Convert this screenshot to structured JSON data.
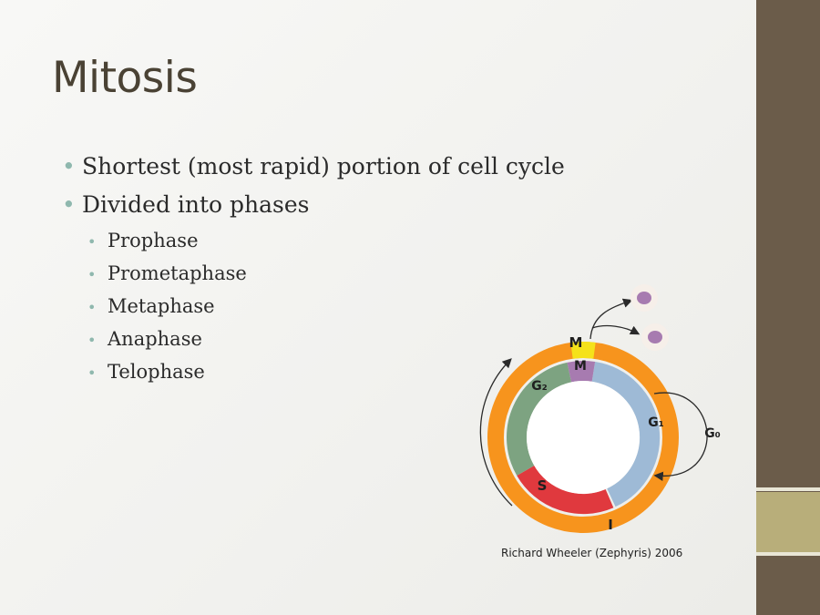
{
  "slide": {
    "title": "Mitosis",
    "bullets": [
      "Shortest (most rapid) portion of cell cycle",
      "Divided into phases"
    ],
    "sub_bullets": [
      "Prophase",
      "Prometaphase",
      "Metaphase",
      "Anaphase",
      "Telophase"
    ]
  },
  "diagram": {
    "labels": {
      "outer_m": "M",
      "inner_m": "M",
      "g2": "G₂",
      "g1": "G₁",
      "g0": "G₀",
      "s": "S",
      "i": "I"
    },
    "credit": "Richard Wheeler (Zephyris) 2006"
  },
  "colors": {
    "outer_ring": "#f7941d",
    "m_phase": "#f5e21a",
    "inner_m": "#a77bb0",
    "g2": "#7da381",
    "s": "#e0393e",
    "g1": "#9ebad6",
    "sidebar": "#6b5c4a",
    "sidebar_accent": "#b8ae7a",
    "bullet": "#8fb8ae"
  }
}
